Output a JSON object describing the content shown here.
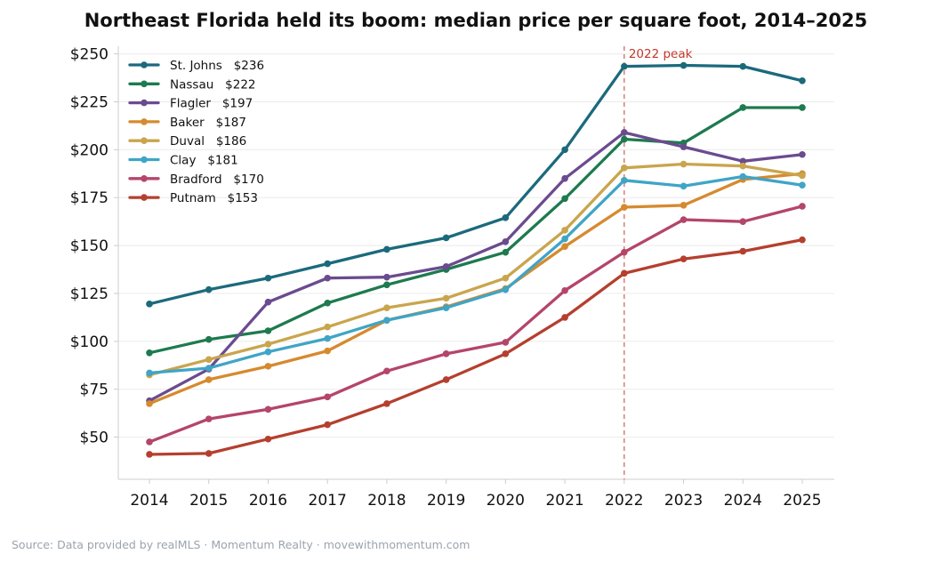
{
  "chart_data": {
    "type": "line",
    "title": "Northeast Florida held its boom: median price per square foot, 2014–2025",
    "xlabel": "",
    "ylabel": "",
    "x": [
      2014,
      2015,
      2016,
      2017,
      2018,
      2019,
      2020,
      2021,
      2022,
      2023,
      2024,
      2025
    ],
    "x_tick_labels": [
      "2014",
      "2015",
      "2016",
      "2017",
      "2018",
      "2019",
      "2020",
      "2021",
      "2022",
      "2023",
      "2024",
      "2025"
    ],
    "ylim": [
      28,
      254
    ],
    "y_ticks": [
      50,
      75,
      100,
      125,
      150,
      175,
      200,
      225,
      250
    ],
    "y_tick_labels": [
      "$50",
      "$75",
      "$100",
      "$125",
      "$150",
      "$175",
      "$200",
      "$225",
      "$250"
    ],
    "grid": "horizontal",
    "legend_position": "top-left",
    "series": [
      {
        "name": "St. Johns",
        "legend_label": "St. Johns   $236",
        "color": "#1b6a7c",
        "values": [
          119.5,
          127,
          133,
          140.5,
          148,
          154,
          164.5,
          200,
          243.5,
          244,
          243.5,
          236
        ]
      },
      {
        "name": "Nassau",
        "legend_label": "Nassau   $222",
        "color": "#1e7a4f",
        "values": [
          94,
          101,
          105.5,
          120,
          129.5,
          137.5,
          146.5,
          174.5,
          205.5,
          203.5,
          222,
          222
        ]
      },
      {
        "name": "Flagler",
        "legend_label": "Flagler   $197",
        "color": "#6b4b8f",
        "values": [
          69,
          85.5,
          120.5,
          133,
          133.5,
          139,
          152,
          185,
          209,
          201.5,
          194,
          197.5
        ]
      },
      {
        "name": "Baker",
        "legend_label": "Baker   $187",
        "color": "#d68a2e",
        "values": [
          67.5,
          80,
          87,
          95,
          111,
          118,
          127.5,
          149.5,
          170,
          171,
          184.5,
          187.5
        ]
      },
      {
        "name": "Duval",
        "legend_label": "Duval   $186",
        "color": "#c9a54d",
        "values": [
          82.5,
          90.5,
          98.5,
          107.5,
          117.5,
          122.5,
          133,
          158,
          190.5,
          192.5,
          191.5,
          186.5
        ]
      },
      {
        "name": "Clay",
        "legend_label": "Clay   $181",
        "color": "#3fa5c6",
        "values": [
          83.5,
          86,
          94.5,
          101.5,
          111,
          117.5,
          127,
          153.5,
          184,
          181,
          186,
          181.5
        ]
      },
      {
        "name": "Bradford",
        "legend_label": "Bradford   $170",
        "color": "#b4456b",
        "values": [
          47.5,
          59.5,
          64.5,
          71,
          84.5,
          93.5,
          99.5,
          126.5,
          146.5,
          163.5,
          162.5,
          170.5
        ]
      },
      {
        "name": "Putnam",
        "legend_label": "Putnam   $153",
        "color": "#b53f2e",
        "values": [
          41,
          41.5,
          49,
          56.5,
          67.5,
          80,
          93.5,
          112.5,
          135.5,
          143,
          147,
          153
        ]
      }
    ],
    "annotations": [
      {
        "x": 2022,
        "label": "2022 peak",
        "color": "#c0392b",
        "style": "dashed-vertical-line"
      }
    ]
  },
  "footer": {
    "source_text": "Source: Data provided by realMLS  ·  Momentum Realty  ·  movewithmomentum.com"
  }
}
